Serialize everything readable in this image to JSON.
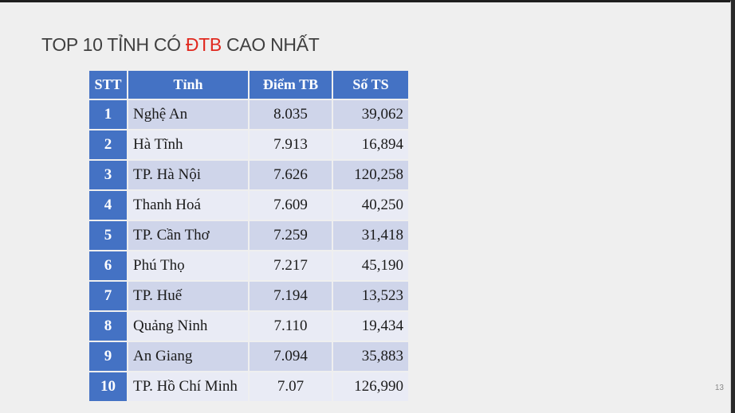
{
  "slide": {
    "title_part1": "TOP 10 TỈNH CÓ ",
    "title_accent": "ĐTB",
    "title_part2": " CAO NHẤT",
    "page_number": "13"
  },
  "table": {
    "headers": [
      "STT",
      "Tỉnh",
      "Điểm TB",
      "Số TS"
    ],
    "rows": [
      {
        "stt": "1",
        "tinh": "Nghệ An",
        "dtb": "8.035",
        "ts": "39,062"
      },
      {
        "stt": "2",
        "tinh": "Hà Tĩnh",
        "dtb": "7.913",
        "ts": "16,894"
      },
      {
        "stt": "3",
        "tinh": "TP. Hà Nội",
        "dtb": "7.626",
        "ts": "120,258"
      },
      {
        "stt": "4",
        "tinh": "Thanh Hoá",
        "dtb": "7.609",
        "ts": "40,250"
      },
      {
        "stt": "5",
        "tinh": "TP. Cần Thơ",
        "dtb": "7.259",
        "ts": "31,418"
      },
      {
        "stt": "6",
        "tinh": "Phú Thọ",
        "dtb": "7.217",
        "ts": "45,190"
      },
      {
        "stt": "7",
        "tinh": "TP. Huế",
        "dtb": "7.194",
        "ts": "13,523"
      },
      {
        "stt": "8",
        "tinh": "Quảng Ninh",
        "dtb": "7.110",
        "ts": "19,434"
      },
      {
        "stt": "9",
        "tinh": "An Giang",
        "dtb": "7.094",
        "ts": "35,883"
      },
      {
        "stt": "10",
        "tinh": "TP. Hồ Chí Minh",
        "dtb": "7.07",
        "ts": "126,990"
      }
    ]
  },
  "colors": {
    "header_blue": "#4472c4",
    "row_dark": "#cfd5ea",
    "row_light": "#e9ebf5",
    "accent_red": "#e0281e"
  }
}
